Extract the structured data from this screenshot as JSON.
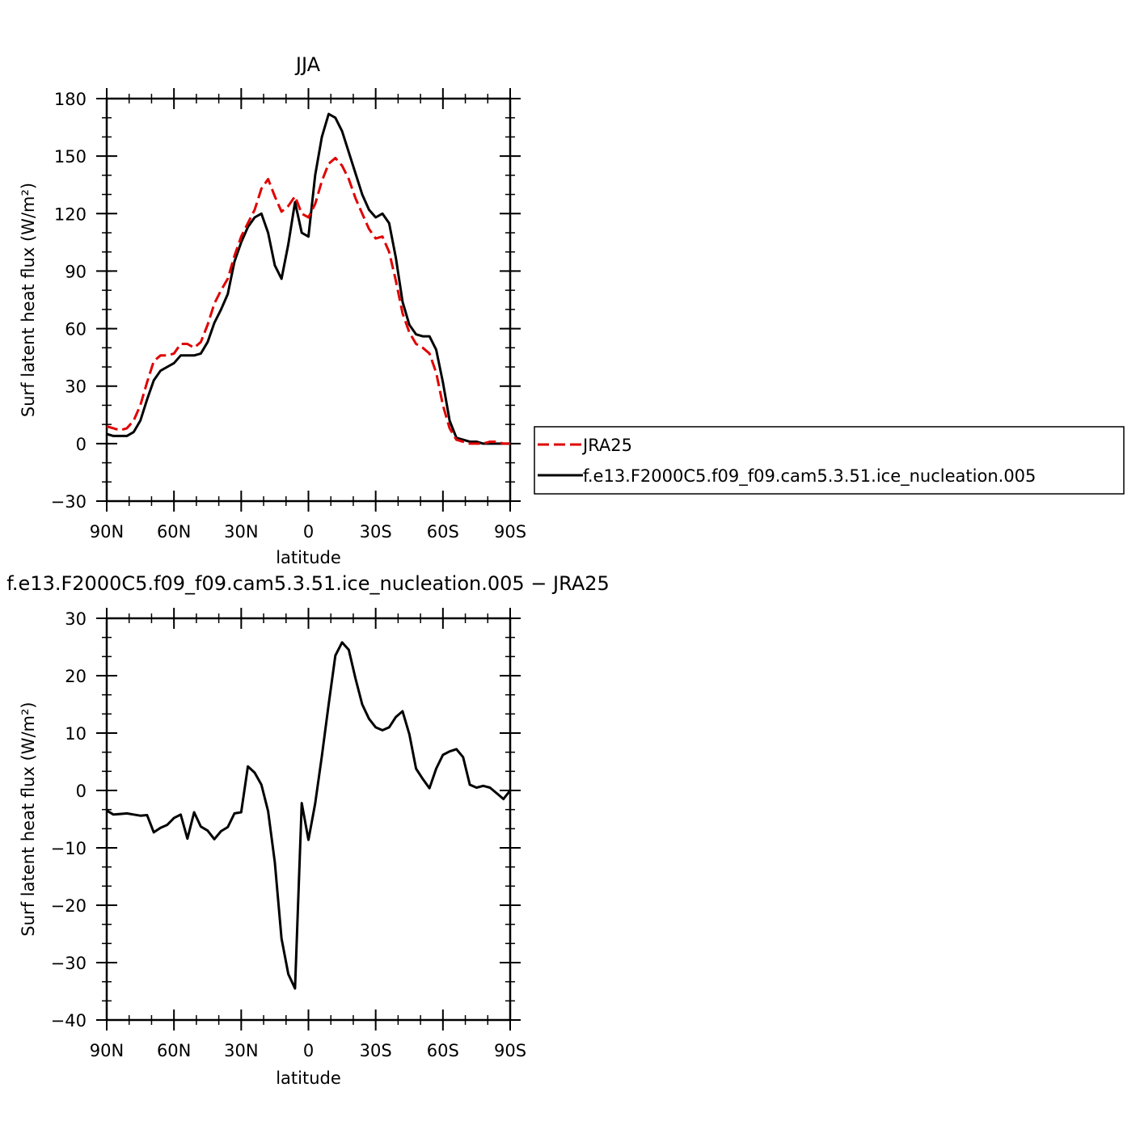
{
  "chart_data": [
    {
      "type": "line",
      "title": "JJA",
      "xlabel": "latitude",
      "ylabel": "Surf latent heat flux (W/m²)",
      "xlim": [
        90,
        -90
      ],
      "ylim": [
        -30,
        180
      ],
      "xticks": [
        90,
        60,
        30,
        0,
        -30,
        -60,
        -90
      ],
      "xtick_labels": [
        "90N",
        "60N",
        "30N",
        "0",
        "30S",
        "60S",
        "90S"
      ],
      "yticks": [
        -30,
        0,
        30,
        60,
        90,
        120,
        150,
        180
      ],
      "ytick_labels": [
        "−30",
        "0",
        "30",
        "60",
        "90",
        "120",
        "150",
        "180"
      ],
      "legend_position": "right",
      "series": [
        {
          "name": "JRA25",
          "color": "#e00000",
          "dash": "dashed",
          "x": [
            90,
            87,
            84,
            81,
            78,
            75,
            72,
            69,
            66,
            63,
            60,
            57,
            54,
            51,
            48,
            45,
            42,
            39,
            36,
            33,
            30,
            27,
            24,
            21,
            18,
            15,
            12,
            9,
            6,
            3,
            0,
            -3,
            -6,
            -9,
            -12,
            -15,
            -18,
            -21,
            -24,
            -27,
            -30,
            -33,
            -36,
            -39,
            -42,
            -45,
            -48,
            -51,
            -54,
            -57,
            -60,
            -63,
            -66,
            -69,
            -72,
            -75,
            -78,
            -81,
            -84,
            -87,
            -90
          ],
          "y": [
            9,
            8,
            7,
            8,
            12,
            20,
            32,
            43,
            46,
            46,
            47,
            52,
            52,
            50,
            53,
            62,
            73,
            80,
            86,
            98,
            108,
            115,
            122,
            133,
            138,
            129,
            121,
            124,
            129,
            120,
            118,
            125,
            137,
            146,
            149,
            145,
            138,
            128,
            120,
            112,
            107,
            108,
            100,
            85,
            68,
            58,
            52,
            50,
            47,
            37,
            20,
            8,
            2,
            1,
            0,
            0,
            0,
            1,
            1,
            0,
            0
          ]
        },
        {
          "name": "f.e13.F2000C5.f09_f09.cam5.3.51.ice_nucleation.005",
          "color": "#000000",
          "dash": "solid",
          "x": [
            90,
            87,
            84,
            81,
            78,
            75,
            72,
            69,
            66,
            63,
            60,
            57,
            54,
            51,
            48,
            45,
            42,
            39,
            36,
            33,
            30,
            27,
            24,
            21,
            18,
            15,
            12,
            9,
            6,
            3,
            0,
            -3,
            -6,
            -9,
            -12,
            -15,
            -18,
            -21,
            -24,
            -27,
            -30,
            -33,
            -36,
            -39,
            -42,
            -45,
            -48,
            -51,
            -54,
            -57,
            -60,
            -63,
            -66,
            -69,
            -72,
            -75,
            -78,
            -81,
            -84,
            -87,
            -90
          ],
          "y": [
            5,
            4,
            4,
            4,
            6,
            12,
            23,
            33,
            38,
            40,
            42,
            46,
            46,
            46,
            47,
            53,
            63,
            70,
            78,
            95,
            105,
            113,
            118,
            120,
            110,
            93,
            86,
            104,
            126,
            110,
            108,
            140,
            160,
            172,
            170,
            163,
            152,
            141,
            130,
            122,
            118,
            120,
            115,
            97,
            74,
            62,
            57,
            56,
            56,
            49,
            32,
            12,
            3,
            2,
            1,
            1,
            0,
            0,
            0,
            0,
            0
          ]
        }
      ]
    },
    {
      "type": "line",
      "title": "f.e13.F2000C5.f09_f09.cam5.3.51.ice_nucleation.005 − JRA25",
      "xlabel": "latitude",
      "ylabel": "Surf latent heat flux (W/m²)",
      "xlim": [
        90,
        -90
      ],
      "ylim": [
        -40,
        30
      ],
      "xticks": [
        90,
        60,
        30,
        0,
        -30,
        -60,
        -90
      ],
      "xtick_labels": [
        "90N",
        "60N",
        "30N",
        "0",
        "30S",
        "60S",
        "90S"
      ],
      "yticks": [
        -40,
        -30,
        -20,
        -10,
        0,
        10,
        20,
        30
      ],
      "ytick_labels": [
        "−40",
        "−30",
        "−20",
        "−10",
        "0",
        "10",
        "20",
        "30"
      ],
      "series": [
        {
          "color": "#000000",
          "dash": "solid",
          "x": [
            90,
            87,
            84,
            81,
            78,
            75,
            72,
            69,
            66,
            63,
            60,
            57,
            54,
            51,
            48,
            45,
            42,
            39,
            36,
            33,
            30,
            27,
            24,
            21,
            18,
            15,
            12,
            9,
            6,
            3,
            0,
            -3,
            -6,
            -9,
            -12,
            -15,
            -18,
            -21,
            -24,
            -27,
            -30,
            -33,
            -36,
            -39,
            -42,
            -45,
            -48,
            -51,
            -54,
            -57,
            -60,
            -63,
            -66,
            -69,
            -72,
            -75,
            -78,
            -81,
            -84,
            -87,
            -90
          ],
          "y": [
            -3.5,
            -4.2,
            -4.1,
            -4.0,
            -4.2,
            -4.4,
            -4.3,
            -7.3,
            -6.5,
            -6.0,
            -4.8,
            -4.2,
            -8.4,
            -3.8,
            -6.3,
            -7.0,
            -8.5,
            -7.1,
            -6.4,
            -4.0,
            -3.8,
            4.2,
            3.1,
            1.0,
            -3.6,
            -12.5,
            -25.8,
            -32.0,
            -34.5,
            -2.2,
            -8.6,
            -2.3,
            6.0,
            15.0,
            23.5,
            25.8,
            24.5,
            19.5,
            15.0,
            12.5,
            11.0,
            10.5,
            11.0,
            12.8,
            13.8,
            9.8,
            3.8,
            2.0,
            0.4,
            3.8,
            6.2,
            6.8,
            7.2,
            5.8,
            1.0,
            0.5,
            0.8,
            0.5,
            -0.5,
            -1.5,
            0.0
          ]
        }
      ]
    }
  ]
}
